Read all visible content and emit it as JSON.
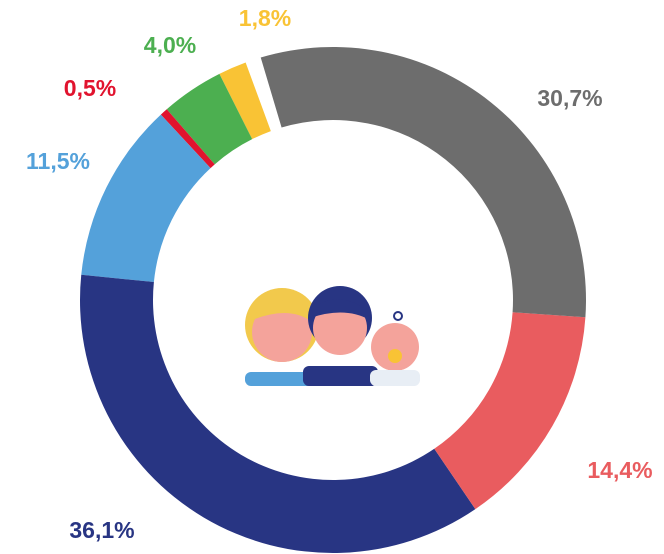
{
  "chart_data": {
    "type": "donut",
    "categories": [
      null,
      null,
      null,
      null,
      null,
      null,
      null
    ],
    "values": [
      30.7,
      14.4,
      36.1,
      11.5,
      0.5,
      4.0,
      1.8
    ],
    "value_labels": [
      "30,7%",
      "14,4%",
      "36,1%",
      "11,5%",
      "0,5%",
      "4,0%",
      "1,8%"
    ],
    "colors": [
      "#6d6d6d",
      "#e95c5f",
      "#283583",
      "#54a1da",
      "#e1132e",
      "#4caf50",
      "#f9c335"
    ]
  }
}
